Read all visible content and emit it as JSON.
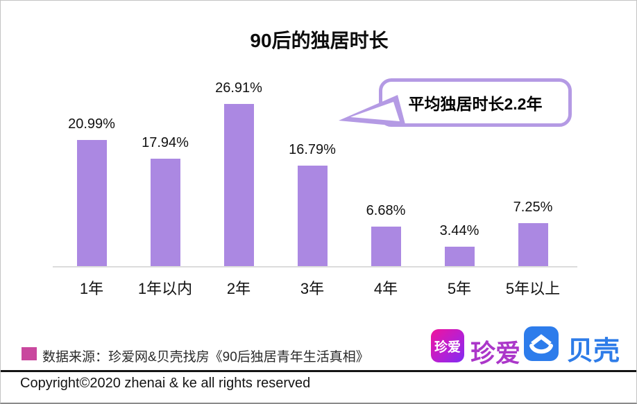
{
  "title": "90后的独居时长",
  "callout": {
    "text": "平均独居时长2.2年"
  },
  "chart_data": {
    "type": "bar",
    "title": "90后的独居时长",
    "categories": [
      "1年",
      "1年以内",
      "2年",
      "3年",
      "4年",
      "5年",
      "5年以上"
    ],
    "values": [
      20.99,
      17.94,
      26.91,
      16.79,
      6.68,
      3.44,
      7.25
    ],
    "value_labels": [
      "20.99%",
      "17.94%",
      "26.91%",
      "16.79%",
      "6.68%",
      "3.44%",
      "7.25%"
    ],
    "annotation": "平均独居时长2.2年",
    "xlabel": "",
    "ylabel": "",
    "ylim": [
      0,
      30
    ],
    "grid": false,
    "legend": "none",
    "bar_color": "#ab88e2"
  },
  "colors": {
    "bar": "#ab88e2",
    "callout_border": "#b49ae4",
    "source_square": "#c9489e",
    "zhenai_gradient_start": "#f0149c",
    "zhenai_gradient_end": "#7f2cf2",
    "zhenai_wordmark": "#ab37c9",
    "beike_blue": "#2e7ce8",
    "axis_line": "#dcdcdc"
  },
  "footer": {
    "source_text": "数据来源：珍爱网&贝壳找房《90后独居青年生活真相》",
    "copyright": "Copyright©2020 zhenai & ke all rights reserved",
    "logos": {
      "zhenai_icon_text": "珍爱",
      "zhenai_wordmark": "珍爱",
      "beike_wordmark": "贝壳"
    }
  }
}
